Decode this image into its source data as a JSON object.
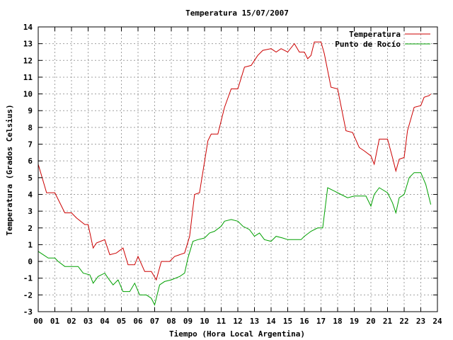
{
  "chart_data": {
    "type": "line",
    "title": "Temperatura 15/07/2007",
    "xlabel": "Tiempo (Hora Local Argentina)",
    "ylabel": "Temperatura (Grados Celsius)",
    "xlim": [
      0,
      24
    ],
    "ylim": [
      -3,
      14
    ],
    "x_ticks": [
      "00",
      "01",
      "02",
      "03",
      "04",
      "05",
      "06",
      "07",
      "08",
      "09",
      "10",
      "11",
      "12",
      "13",
      "14",
      "15",
      "16",
      "17",
      "18",
      "19",
      "20",
      "21",
      "22",
      "23",
      "24"
    ],
    "y_ticks": [
      -3,
      -2,
      -1,
      0,
      1,
      2,
      3,
      4,
      5,
      6,
      7,
      8,
      9,
      10,
      11,
      12,
      13,
      14
    ],
    "grid": true,
    "legend_position": "top-right",
    "series": [
      {
        "name": "Temperatura",
        "color": "#cc0000",
        "points": [
          [
            0,
            5.8
          ],
          [
            0.5,
            4.1
          ],
          [
            1,
            4.1
          ],
          [
            1.6,
            2.9
          ],
          [
            2,
            2.9
          ],
          [
            2.3,
            2.6
          ],
          [
            2.8,
            2.2
          ],
          [
            3.0,
            2.2
          ],
          [
            3.3,
            0.8
          ],
          [
            3.5,
            1.1
          ],
          [
            4.0,
            1.3
          ],
          [
            4.3,
            0.4
          ],
          [
            4.7,
            0.5
          ],
          [
            5.1,
            0.8
          ],
          [
            5.4,
            -0.2
          ],
          [
            5.8,
            -0.2
          ],
          [
            6.0,
            0.3
          ],
          [
            6.4,
            -0.6
          ],
          [
            6.8,
            -0.6
          ],
          [
            7.1,
            -1.1
          ],
          [
            7.4,
            0.0
          ],
          [
            7.9,
            0.0
          ],
          [
            8.2,
            0.3
          ],
          [
            8.8,
            0.5
          ],
          [
            9.1,
            1.5
          ],
          [
            9.4,
            4.0
          ],
          [
            9.7,
            4.1
          ],
          [
            10.2,
            7.2
          ],
          [
            10.4,
            7.6
          ],
          [
            10.8,
            7.6
          ],
          [
            11.2,
            9.2
          ],
          [
            11.6,
            10.3
          ],
          [
            12.0,
            10.3
          ],
          [
            12.4,
            11.6
          ],
          [
            12.8,
            11.7
          ],
          [
            13.2,
            12.3
          ],
          [
            13.5,
            12.6
          ],
          [
            14.0,
            12.7
          ],
          [
            14.3,
            12.5
          ],
          [
            14.6,
            12.7
          ],
          [
            15.0,
            12.5
          ],
          [
            15.4,
            13.0
          ],
          [
            15.7,
            12.5
          ],
          [
            16.0,
            12.5
          ],
          [
            16.2,
            12.1
          ],
          [
            16.4,
            12.3
          ],
          [
            16.6,
            13.1
          ],
          [
            17.0,
            13.1
          ],
          [
            17.2,
            12.4
          ],
          [
            17.6,
            10.4
          ],
          [
            18.0,
            10.3
          ],
          [
            18.2,
            9.3
          ],
          [
            18.5,
            7.8
          ],
          [
            18.9,
            7.7
          ],
          [
            19.3,
            6.8
          ],
          [
            19.6,
            6.6
          ],
          [
            20.0,
            6.3
          ],
          [
            20.2,
            5.8
          ],
          [
            20.5,
            7.3
          ],
          [
            21.0,
            7.3
          ],
          [
            21.3,
            6.2
          ],
          [
            21.5,
            5.4
          ],
          [
            21.7,
            6.1
          ],
          [
            22.0,
            6.2
          ],
          [
            22.2,
            7.8
          ],
          [
            22.6,
            9.2
          ],
          [
            23.0,
            9.3
          ],
          [
            23.2,
            9.8
          ],
          [
            23.5,
            9.9
          ],
          [
            23.6,
            10.0
          ]
        ]
      },
      {
        "name": "Punto de Rocío",
        "color": "#00a000",
        "points": [
          [
            0,
            0.6
          ],
          [
            0.3,
            0.4
          ],
          [
            0.6,
            0.2
          ],
          [
            1,
            0.2
          ],
          [
            1.2,
            0.0
          ],
          [
            1.6,
            -0.3
          ],
          [
            2.0,
            -0.3
          ],
          [
            2.4,
            -0.3
          ],
          [
            2.7,
            -0.7
          ],
          [
            3.1,
            -0.8
          ],
          [
            3.3,
            -1.3
          ],
          [
            3.6,
            -0.9
          ],
          [
            4.0,
            -0.7
          ],
          [
            4.2,
            -1.0
          ],
          [
            4.5,
            -1.4
          ],
          [
            4.8,
            -1.1
          ],
          [
            5.1,
            -1.8
          ],
          [
            5.5,
            -1.8
          ],
          [
            5.8,
            -1.3
          ],
          [
            6.1,
            -2.0
          ],
          [
            6.5,
            -2.0
          ],
          [
            6.8,
            -2.2
          ],
          [
            7.0,
            -2.6
          ],
          [
            7.3,
            -1.4
          ],
          [
            7.6,
            -1.2
          ],
          [
            8.0,
            -1.1
          ],
          [
            8.5,
            -0.9
          ],
          [
            8.8,
            -0.7
          ],
          [
            9.0,
            0.2
          ],
          [
            9.3,
            1.2
          ],
          [
            9.6,
            1.3
          ],
          [
            10.0,
            1.4
          ],
          [
            10.3,
            1.7
          ],
          [
            10.6,
            1.8
          ],
          [
            11.0,
            2.1
          ],
          [
            11.2,
            2.4
          ],
          [
            11.6,
            2.5
          ],
          [
            12.0,
            2.4
          ],
          [
            12.3,
            2.1
          ],
          [
            12.7,
            1.9
          ],
          [
            13.0,
            1.5
          ],
          [
            13.3,
            1.7
          ],
          [
            13.6,
            1.3
          ],
          [
            14.0,
            1.2
          ],
          [
            14.3,
            1.5
          ],
          [
            14.7,
            1.4
          ],
          [
            15.0,
            1.3
          ],
          [
            15.4,
            1.3
          ],
          [
            15.8,
            1.3
          ],
          [
            16.0,
            1.5
          ],
          [
            16.4,
            1.8
          ],
          [
            16.8,
            2.0
          ],
          [
            17.1,
            2.0
          ],
          [
            17.4,
            4.4
          ],
          [
            17.8,
            4.2
          ],
          [
            18.2,
            4.0
          ],
          [
            18.6,
            3.8
          ],
          [
            19.0,
            3.9
          ],
          [
            19.4,
            3.9
          ],
          [
            19.7,
            3.9
          ],
          [
            20.0,
            3.3
          ],
          [
            20.2,
            4.0
          ],
          [
            20.5,
            4.4
          ],
          [
            21.0,
            4.1
          ],
          [
            21.3,
            3.5
          ],
          [
            21.5,
            2.9
          ],
          [
            21.7,
            3.8
          ],
          [
            22.0,
            4.0
          ],
          [
            22.3,
            5.0
          ],
          [
            22.6,
            5.3
          ],
          [
            23.0,
            5.3
          ],
          [
            23.3,
            4.6
          ],
          [
            23.6,
            3.4
          ]
        ]
      }
    ]
  }
}
